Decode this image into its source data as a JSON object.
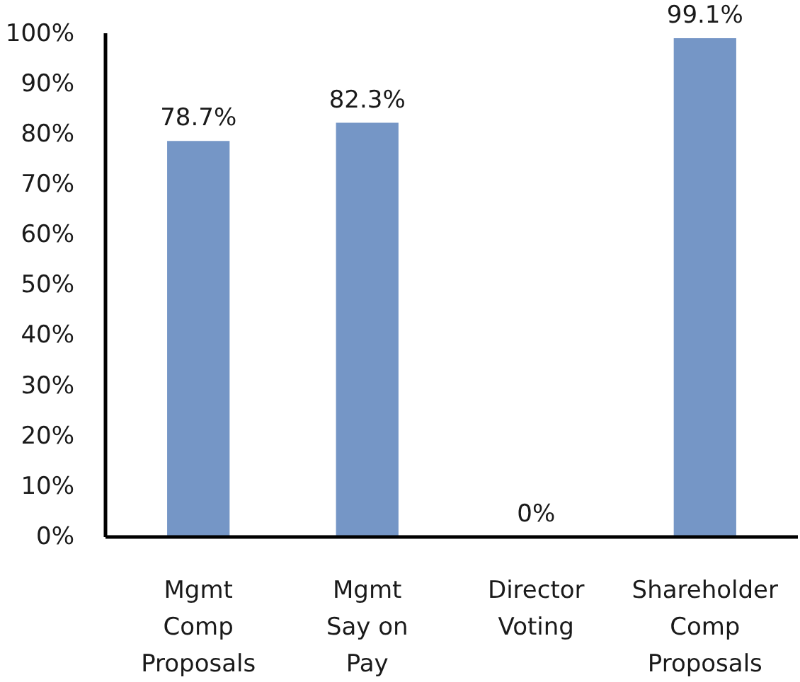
{
  "chart_data": {
    "type": "bar",
    "categories": [
      "Mgmt\nComp\nProposals",
      "Mgmt\nSay on\nPay",
      "Director\nVoting",
      "Shareholder\nComp\nProposals"
    ],
    "values": [
      78.7,
      82.3,
      0,
      99.1
    ],
    "value_labels": [
      "78.7%",
      "82.3%",
      "0%",
      "99.1%"
    ],
    "color": "#7596c6",
    "ylim": [
      0,
      100
    ],
    "yticks": [
      {
        "value": 0,
        "label": "0%"
      },
      {
        "value": 10,
        "label": "10%"
      },
      {
        "value": 20,
        "label": "20%"
      },
      {
        "value": 30,
        "label": "30%"
      },
      {
        "value": 40,
        "label": "40%"
      },
      {
        "value": 50,
        "label": "50%"
      },
      {
        "value": 60,
        "label": "60%"
      },
      {
        "value": 70,
        "label": "70%"
      },
      {
        "value": 80,
        "label": "80%"
      },
      {
        "value": 90,
        "label": "90%"
      },
      {
        "value": 100,
        "label": "100%"
      }
    ],
    "grid": false
  }
}
